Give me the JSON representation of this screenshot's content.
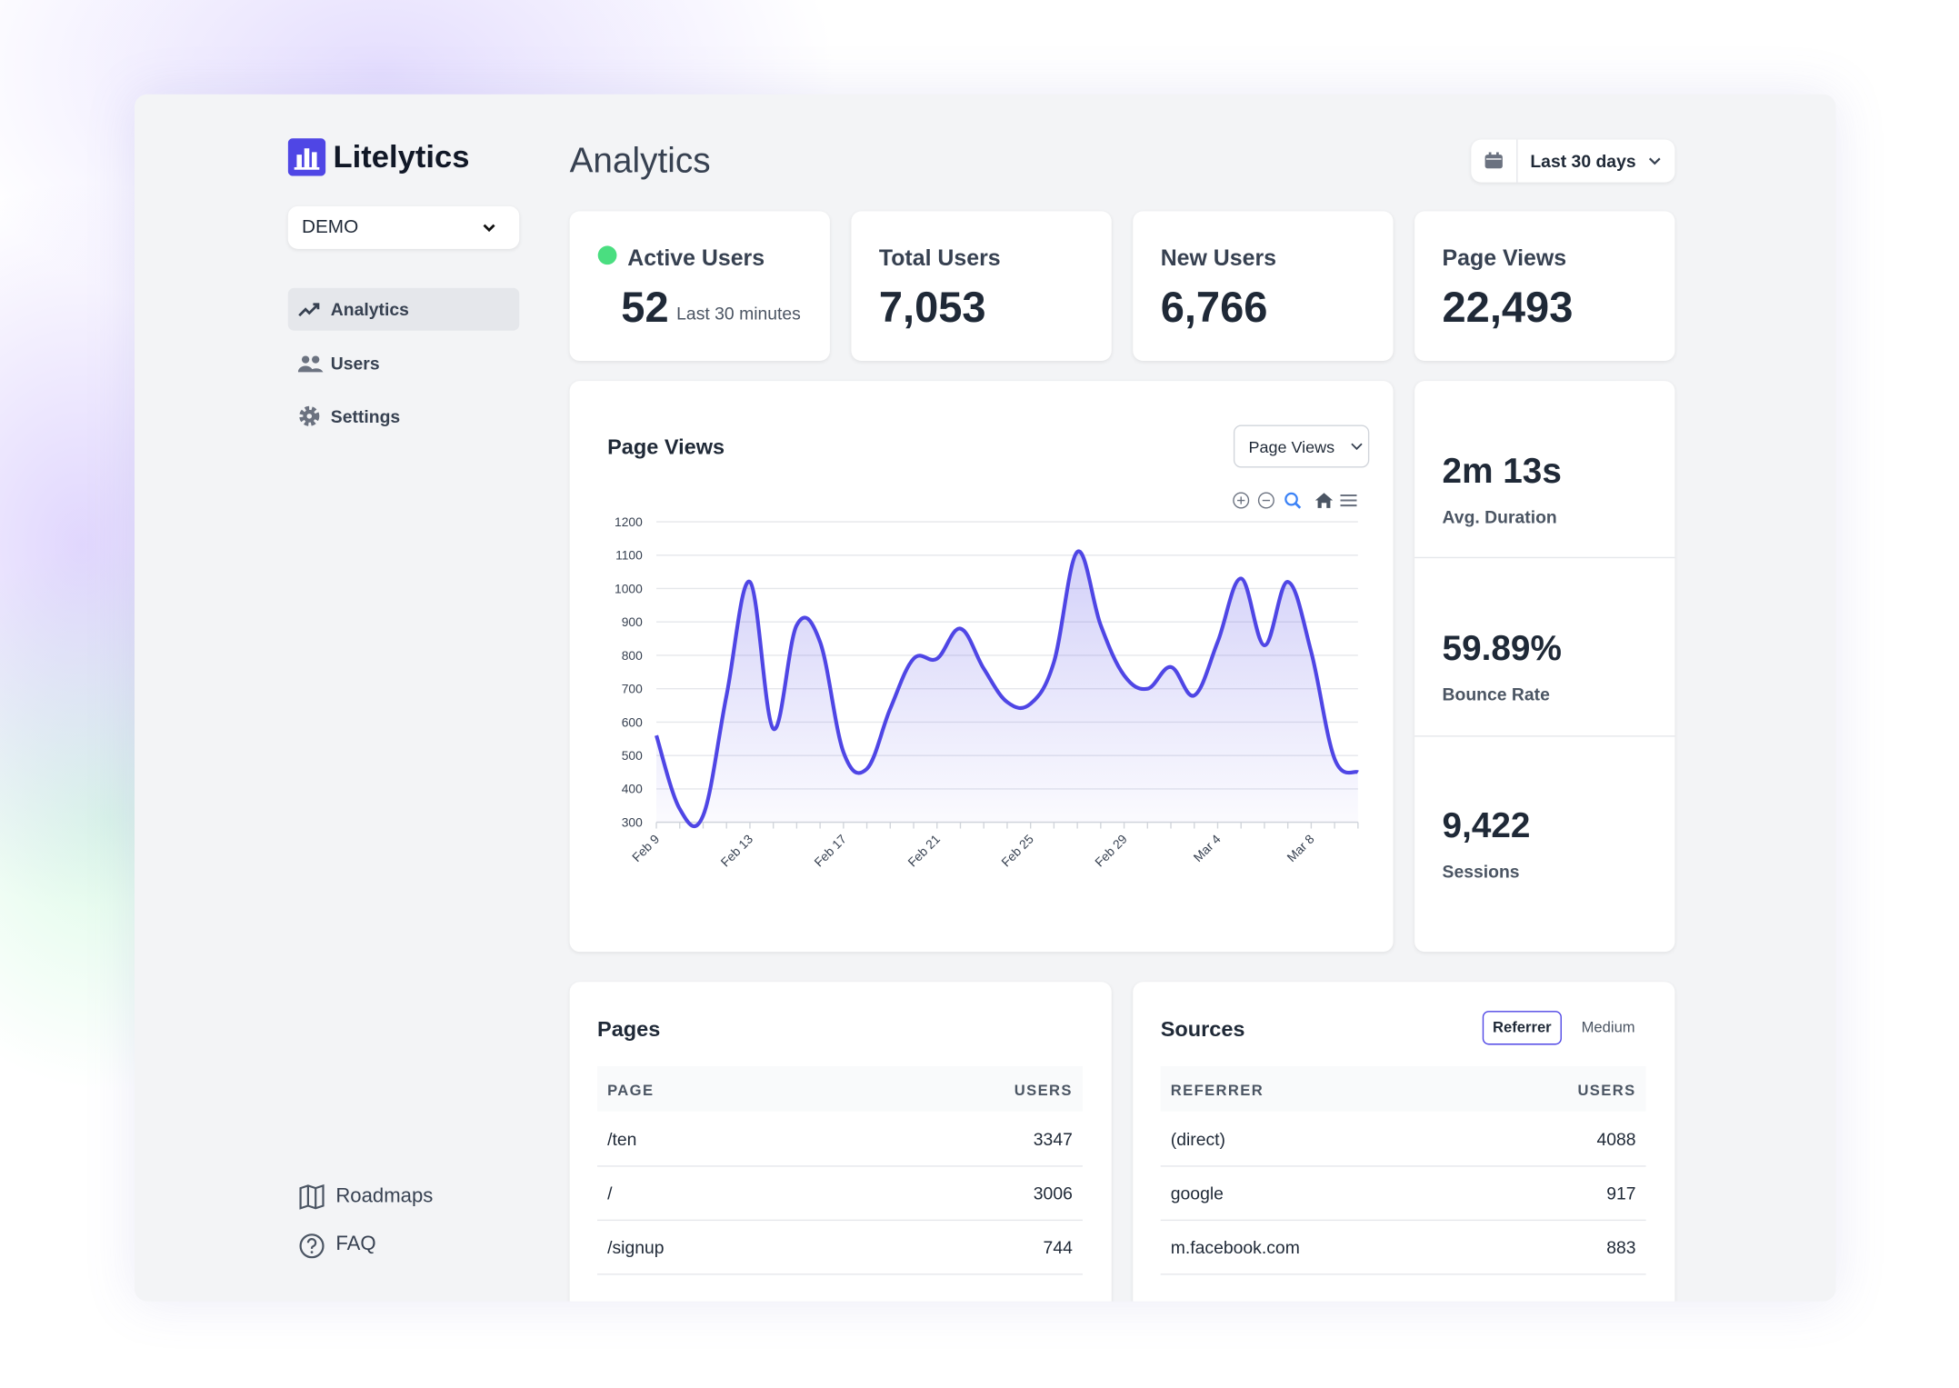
{
  "sidebar": {
    "brand": "Litelytics",
    "project": "DEMO",
    "nav": [
      "Analytics",
      "Users",
      "Settings"
    ],
    "footer_links": [
      "Roadmaps",
      "FAQ"
    ]
  },
  "header": {
    "title": "Analytics",
    "date_range": "Last 30 days"
  },
  "stats": [
    {
      "label": "Active Users",
      "value": "52",
      "note": "Last 30 minutes"
    },
    {
      "label": "Total Users",
      "value": "7,053"
    },
    {
      "label": "New Users",
      "value": "6,766"
    },
    {
      "label": "Page Views",
      "value": "22,493"
    }
  ],
  "chart": {
    "type": "line",
    "title": "Page Views",
    "selector": "Page Views",
    "categories": [
      "Feb 9",
      null,
      null,
      null,
      "Feb 13",
      null,
      null,
      null,
      "Feb 17",
      null,
      null,
      null,
      "Feb 21",
      null,
      null,
      null,
      "Feb 25",
      null,
      null,
      null,
      "Feb 29",
      null,
      null,
      null,
      "Mar 4",
      null,
      null,
      null,
      "Mar 8",
      null,
      null
    ],
    "values": [
      560,
      340,
      320,
      680,
      1020,
      580,
      890,
      840,
      510,
      460,
      640,
      790,
      790,
      880,
      760,
      660,
      655,
      780,
      1110,
      890,
      740,
      700,
      765,
      680,
      840,
      1030,
      830,
      1020,
      810,
      490,
      450
    ],
    "color": "#4f46e5",
    "ylim": [
      300,
      1200
    ],
    "yticks": [
      300,
      400,
      500,
      600,
      700,
      800,
      900,
      1000,
      1100,
      1200
    ],
    "grid": true
  },
  "metrics": [
    {
      "value": "2m 13s",
      "label": "Avg. Duration"
    },
    {
      "value": "59.89%",
      "label": "Bounce Rate"
    },
    {
      "value": "9,422",
      "label": "Sessions"
    }
  ],
  "pages": {
    "title": "Pages",
    "columns": [
      "PAGE",
      "USERS"
    ],
    "rows": [
      [
        "/ten",
        3347
      ],
      [
        "/",
        3006
      ],
      [
        "/signup",
        744
      ]
    ]
  },
  "sources": {
    "title": "Sources",
    "tabs": [
      "Referrer",
      "Medium"
    ],
    "columns": [
      "REFERRER",
      "USERS"
    ],
    "rows": [
      [
        "(direct)",
        4088
      ],
      [
        "google",
        917
      ],
      [
        "m.facebook.com",
        883
      ]
    ]
  }
}
